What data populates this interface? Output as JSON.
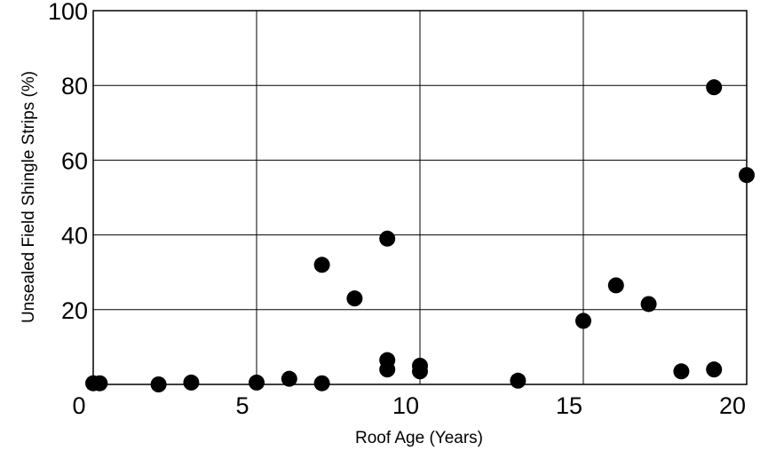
{
  "chart_data": {
    "type": "scatter",
    "title": "",
    "xlabel": "Roof Age (Years)",
    "ylabel": "Unsealed Field Shingle Strips (%)",
    "xlim": [
      0,
      20
    ],
    "ylim": [
      0,
      100
    ],
    "xticks": [
      0,
      5,
      10,
      15,
      20
    ],
    "yticks": [
      20,
      40,
      60,
      80,
      100
    ],
    "grid": true,
    "point_color": "#000000",
    "series": [
      {
        "points": [
          {
            "x": 0.5,
            "y": 0.3
          },
          {
            "x": 0.7,
            "y": 0.3
          },
          {
            "x": 2.5,
            "y": 0.0
          },
          {
            "x": 3.5,
            "y": 0.5
          },
          {
            "x": 5.5,
            "y": 0.5
          },
          {
            "x": 6.5,
            "y": 1.5
          },
          {
            "x": 7.5,
            "y": 0.3
          },
          {
            "x": 7.5,
            "y": 32.0
          },
          {
            "x": 8.5,
            "y": 23.0
          },
          {
            "x": 9.5,
            "y": 39.0
          },
          {
            "x": 9.5,
            "y": 6.5
          },
          {
            "x": 9.5,
            "y": 4.0
          },
          {
            "x": 10.5,
            "y": 5.0
          },
          {
            "x": 10.5,
            "y": 3.5
          },
          {
            "x": 13.5,
            "y": 1.0
          },
          {
            "x": 15.5,
            "y": 17.0
          },
          {
            "x": 16.5,
            "y": 26.5
          },
          {
            "x": 17.5,
            "y": 21.5
          },
          {
            "x": 18.5,
            "y": 3.5
          },
          {
            "x": 19.5,
            "y": 4.0
          },
          {
            "x": 19.5,
            "y": 79.5
          },
          {
            "x": 20.5,
            "y": 56.0
          }
        ]
      }
    ]
  }
}
